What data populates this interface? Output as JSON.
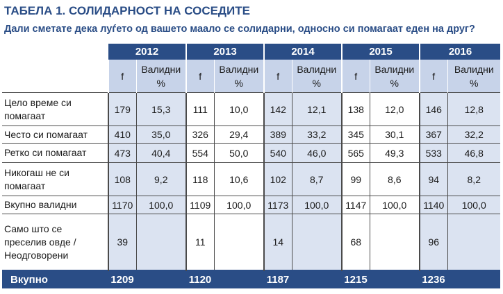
{
  "header": {
    "title": "ТАБЕЛА 1. СОЛИДАРНОСТ НА СОСЕДИТЕ",
    "subtitle": "Дали сметате дека луѓето од вашето маало се солидарни, односно си помагаат еден на друг?"
  },
  "table": {
    "years": [
      "2012",
      "2013",
      "2014",
      "2015",
      "2016"
    ],
    "sub_f": "f",
    "sub_valid_line1": "Валидни",
    "sub_valid_line2": "%",
    "rows": [
      {
        "label_lines": [
          "Цело време си",
          "помагаат"
        ],
        "cells": [
          [
            "179",
            "15,3"
          ],
          [
            "111",
            "10,0"
          ],
          [
            "142",
            "12,1"
          ],
          [
            "138",
            "12,0"
          ],
          [
            "146",
            "12,8"
          ]
        ]
      },
      {
        "label_lines": [
          "Често си помагаат"
        ],
        "cells": [
          [
            "410",
            "35,0"
          ],
          [
            "326",
            "29,4"
          ],
          [
            "389",
            "33,2"
          ],
          [
            "345",
            "30,1"
          ],
          [
            "367",
            "32,2"
          ]
        ]
      },
      {
        "label_lines": [
          "Ретко си помагаат"
        ],
        "cells": [
          [
            "473",
            "40,4"
          ],
          [
            "554",
            "50,0"
          ],
          [
            "540",
            "46,0"
          ],
          [
            "565",
            "49,3"
          ],
          [
            "533",
            "46,8"
          ]
        ]
      },
      {
        "label_lines": [
          "Никогаш не си",
          "помагаат"
        ],
        "cells": [
          [
            "108",
            "9,2"
          ],
          [
            "118",
            "10,6"
          ],
          [
            "102",
            "8,7"
          ],
          [
            "99",
            "8,6"
          ],
          [
            "94",
            "8,2"
          ]
        ]
      },
      {
        "label_lines": [
          "Вкупно валидни"
        ],
        "cells": [
          [
            "1170",
            "100,0"
          ],
          [
            "1109",
            "100,0"
          ],
          [
            "1173",
            "100,0"
          ],
          [
            "1147",
            "100,0"
          ],
          [
            "1140",
            "100,0"
          ]
        ]
      },
      {
        "label_lines": [
          "Само што се",
          "преселив овде /",
          "Неодговорени"
        ],
        "cells": [
          [
            "39",
            ""
          ],
          [
            "11",
            ""
          ],
          [
            "14",
            ""
          ],
          [
            "68",
            ""
          ],
          [
            "96",
            ""
          ]
        ]
      }
    ],
    "total": {
      "label": "Вкупно",
      "values": [
        "1209",
        "1120",
        "1187",
        "1215",
        "1236"
      ]
    }
  },
  "colors": {
    "header_blue": "#2a4d86",
    "subheader_blue": "#c7d3e9",
    "shade_blue": "#dbe3f1"
  }
}
